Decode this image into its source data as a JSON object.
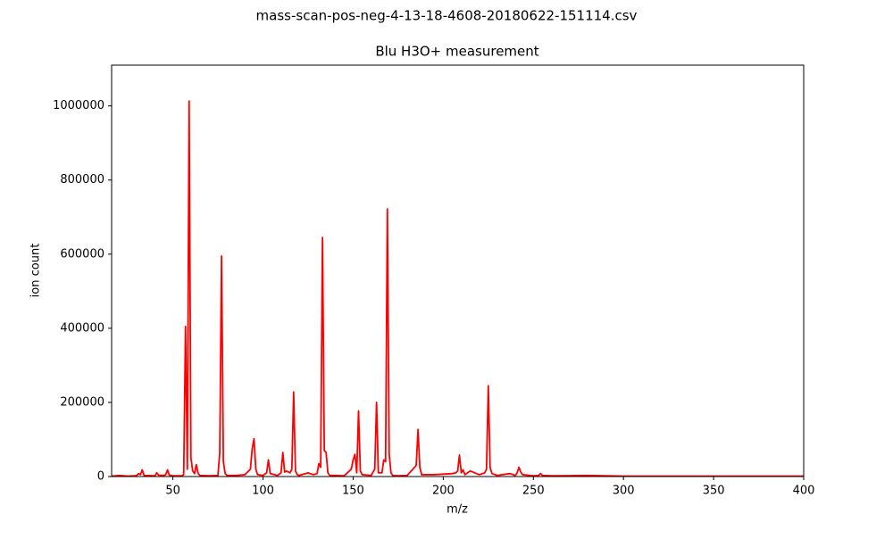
{
  "chart_data": {
    "type": "line",
    "suptitle": "mass-scan-pos-neg-4-13-18-4608-20180622-151114.csv",
    "title": "Blu H3O+ measurement",
    "xlabel": "m/z",
    "ylabel": "ion count",
    "xlim": [
      16,
      400
    ],
    "ylim": [
      0,
      1110000
    ],
    "xticks": [
      50,
      100,
      150,
      200,
      250,
      300,
      350,
      400
    ],
    "yticks": [
      0,
      200000,
      400000,
      600000,
      800000,
      1000000
    ],
    "grid": false,
    "x": [
      16,
      20,
      25,
      29,
      30,
      31,
      32,
      33,
      34,
      40,
      41,
      42,
      45,
      46,
      47,
      48,
      50,
      55,
      56,
      57,
      58,
      59,
      60,
      61,
      62,
      63,
      64,
      65,
      70,
      75,
      76,
      77,
      78,
      79,
      80,
      85,
      90,
      93,
      94,
      95,
      96,
      97,
      100,
      102,
      103,
      104,
      108,
      110,
      111,
      112,
      113,
      115,
      116,
      117,
      118,
      119,
      120,
      125,
      128,
      130,
      131,
      132,
      133,
      134,
      135,
      136,
      137,
      140,
      145,
      149,
      150,
      151,
      152,
      153,
      154,
      155,
      160,
      162,
      163,
      164,
      166,
      167,
      168,
      169,
      170,
      171,
      172,
      175,
      180,
      185,
      186,
      187,
      188,
      195,
      205,
      207,
      208,
      209,
      210,
      211,
      212,
      215,
      220,
      223,
      224,
      225,
      226,
      227,
      230,
      237,
      240,
      241,
      242,
      243,
      244,
      250,
      253,
      254,
      255,
      260,
      280,
      300,
      350,
      400
    ],
    "series": [
      {
        "name": "ion count",
        "color": "#ff0000",
        "values": [
          1000,
          3000,
          1000,
          2000,
          3000,
          8000,
          5000,
          18000,
          3000,
          2000,
          10000,
          4000,
          3000,
          5000,
          18000,
          4000,
          2000,
          2000,
          5000,
          405000,
          20000,
          1013000,
          50000,
          15000,
          8000,
          32000,
          8000,
          3000,
          2000,
          3000,
          65000,
          595000,
          40000,
          8000,
          3000,
          3000,
          5000,
          20000,
          75000,
          102000,
          20000,
          5000,
          3000,
          10000,
          45000,
          8000,
          3000,
          10000,
          65000,
          12000,
          15000,
          10000,
          20000,
          228000,
          15000,
          5000,
          3000,
          10000,
          5000,
          8000,
          35000,
          25000,
          645000,
          70000,
          65000,
          10000,
          3000,
          3000,
          2000,
          20000,
          45000,
          60000,
          10000,
          177000,
          15000,
          5000,
          3000,
          20000,
          200000,
          10000,
          10000,
          45000,
          40000,
          722000,
          60000,
          10000,
          3000,
          2000,
          3000,
          30000,
          127000,
          25000,
          5000,
          5000,
          8000,
          10000,
          15000,
          58000,
          10000,
          18000,
          5000,
          15000,
          5000,
          10000,
          20000,
          245000,
          25000,
          8000,
          3000,
          8000,
          3000,
          10000,
          25000,
          12000,
          5000,
          2000,
          3000,
          8000,
          3000,
          2000,
          3000,
          1000,
          1000,
          1000
        ]
      }
    ]
  }
}
